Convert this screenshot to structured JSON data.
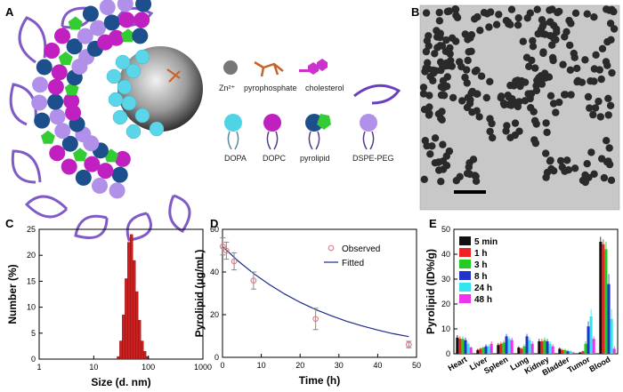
{
  "panels": {
    "a": {
      "letter": "A",
      "legend": [
        {
          "label": "Zn²⁺",
          "icon": "zinc-sphere-icon",
          "color": "#777777"
        },
        {
          "label": "pyrophosphate",
          "icon": "pyrophosphate-icon",
          "color": "#c8622a"
        },
        {
          "label": "cholesterol",
          "icon": "cholesterol-icon",
          "color": "#cc33cc"
        },
        {
          "label": "DOPA",
          "icon": "dopa-lipid-icon",
          "color": "#4fd4e6"
        },
        {
          "label": "DOPC",
          "icon": "dopc-lipid-icon",
          "color": "#c020c0"
        },
        {
          "label": "pyrolipid",
          "icon": "pyrolipid-icon",
          "color": "#1d4f8c"
        },
        {
          "label": "DSPE-PEG",
          "icon": "dspe-peg-icon",
          "color": "#b090e8"
        }
      ]
    },
    "b": {
      "letter": "B"
    },
    "c": {
      "letter": "C"
    },
    "d": {
      "letter": "D"
    },
    "e": {
      "letter": "E"
    }
  },
  "chart_data": [
    {
      "type": "bar",
      "panel": "C",
      "xlabel": "Size (d. nm)",
      "ylabel": "Number (%)",
      "xscale": "log",
      "xlim": [
        1,
        1000
      ],
      "ylim": [
        0,
        25
      ],
      "xticks": [
        "1",
        "10",
        "100",
        "1000"
      ],
      "yticks": [
        "0",
        "5",
        "10",
        "15",
        "20",
        "25"
      ],
      "bar_color": "#cc1f1f",
      "x": [
        28.2,
        31.5,
        35.2,
        39.4,
        44.0,
        49.2,
        55.0,
        61.5,
        68.8,
        76.9,
        86.0,
        96.1
      ],
      "values": [
        0.5,
        3.5,
        8.5,
        15.5,
        22.5,
        24,
        19,
        13,
        7.5,
        3.5,
        1.5,
        0.5
      ]
    },
    {
      "type": "scatter",
      "panel": "D",
      "xlabel": "Time (h)",
      "ylabel": "Pyrolipid (μg/mL)",
      "xlim": [
        0,
        50
      ],
      "ylim": [
        0,
        60
      ],
      "xticks": [
        "0",
        "10",
        "20",
        "30",
        "40",
        "50"
      ],
      "yticks": [
        "0",
        "20",
        "40",
        "60"
      ],
      "legend_position": "top-right",
      "series": [
        {
          "name": "Observed",
          "marker": "open-circle",
          "color": "#e07a8a",
          "x": [
            0.08,
            1,
            3,
            8,
            24,
            48
          ],
          "y": [
            52,
            50,
            45,
            36,
            18,
            6
          ],
          "err": [
            4,
            4,
            4,
            4,
            5,
            1.5
          ]
        },
        {
          "name": "Fitted",
          "line": "solid",
          "color": "#1a2a8c",
          "x": [
            0,
            4,
            8,
            12,
            16,
            20,
            24,
            28,
            32,
            36,
            40,
            44,
            48
          ],
          "y": [
            52,
            45.2,
            39.3,
            34.2,
            29.7,
            25.8,
            22.4,
            19.5,
            16.9,
            14.7,
            12.8,
            11.1,
            9.7
          ]
        }
      ]
    },
    {
      "type": "bar",
      "panel": "E",
      "ylabel": "Pyrolipid (ID%/g)",
      "ylim": [
        0,
        50
      ],
      "yticks": [
        "0",
        "10",
        "20",
        "30",
        "40",
        "50"
      ],
      "legend_position": "top-left",
      "categories": [
        "Heart",
        "Liver",
        "Spleen",
        "Lung",
        "Kidney",
        "Bladder",
        "Tumor",
        "Blood"
      ],
      "series": [
        {
          "name": "5 min",
          "color": "#111111",
          "values": [
            6.5,
            1.5,
            3.5,
            2.5,
            5,
            2,
            0.5,
            45
          ]
        },
        {
          "name": "1 h",
          "color": "#ee2222",
          "values": [
            6,
            2,
            4,
            2,
            5,
            1.5,
            1,
            44
          ]
        },
        {
          "name": "3 h",
          "color": "#22cc22",
          "values": [
            6,
            2.5,
            4.5,
            3,
            5.5,
            1.5,
            4,
            42
          ]
        },
        {
          "name": "8 h",
          "color": "#2233cc",
          "values": [
            5.5,
            3,
            7,
            7,
            5,
            1,
            11,
            28
          ]
        },
        {
          "name": "24 h",
          "color": "#33e6ee",
          "values": [
            4,
            3,
            6,
            5.5,
            4,
            1,
            15,
            14
          ]
        },
        {
          "name": "48 h",
          "color": "#ee33ee",
          "values": [
            2.5,
            4,
            5.5,
            4,
            3,
            0.5,
            6,
            2
          ]
        }
      ],
      "errors": [
        [
          1,
          0.5,
          0.8,
          0.5,
          1,
          0.5,
          0.3,
          2
        ],
        [
          1,
          0.5,
          0.8,
          0.5,
          1,
          0.5,
          0.3,
          2
        ],
        [
          1,
          0.5,
          0.8,
          0.8,
          1,
          0.5,
          1,
          3
        ],
        [
          1,
          0.8,
          1,
          1,
          1,
          0.5,
          2,
          4
        ],
        [
          0.8,
          0.8,
          1,
          1,
          1,
          0.5,
          3,
          4
        ],
        [
          0.5,
          1,
          1,
          1,
          0.8,
          0.3,
          1,
          1
        ]
      ]
    }
  ]
}
